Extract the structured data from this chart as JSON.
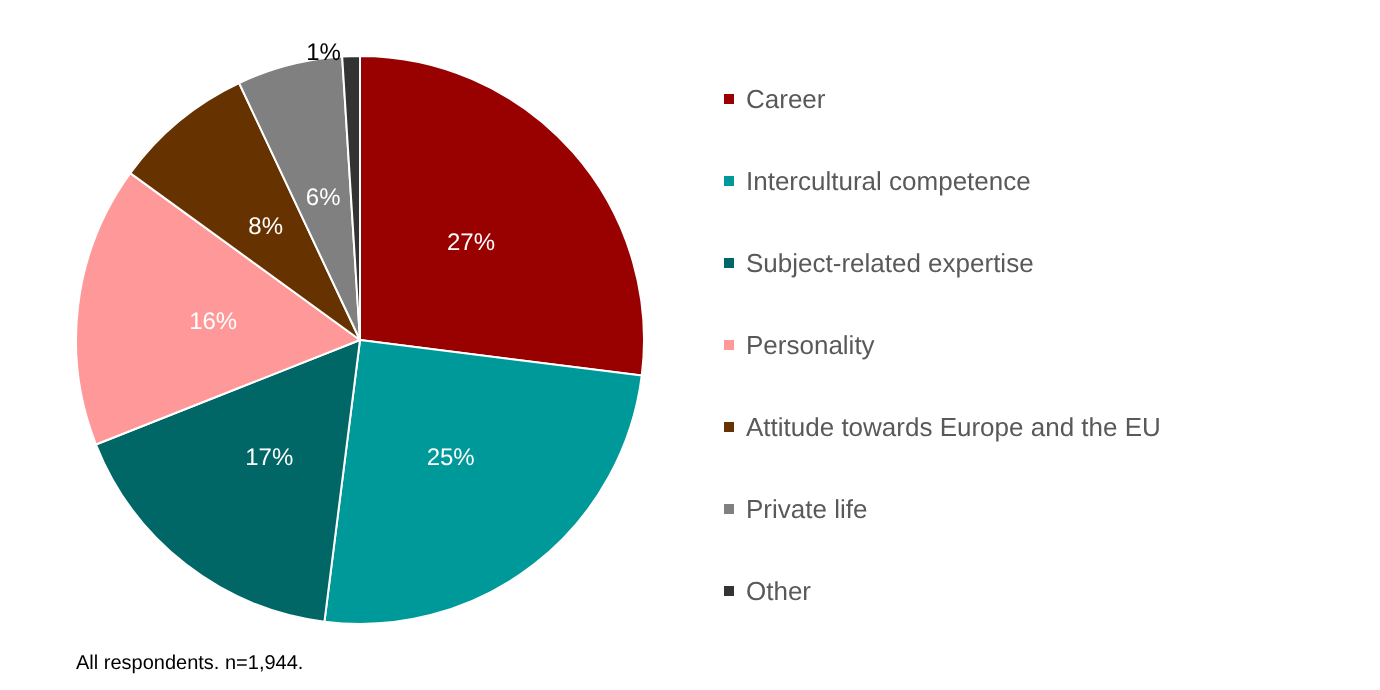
{
  "chart_data": {
    "type": "pie",
    "categories": [
      "Career",
      "Intercultural competence",
      "Subject-related expertise",
      "Personality",
      "Attitude towards Europe and the EU",
      "Private life",
      "Other"
    ],
    "values": [
      27,
      25,
      17,
      16,
      8,
      6,
      1
    ],
    "value_labels": [
      "27%",
      "25%",
      "17%",
      "16%",
      "8%",
      "6%",
      "1%"
    ],
    "colors": [
      "#990000",
      "#009999",
      "#006666",
      "#ff9999",
      "#663300",
      "#808080",
      "#333333"
    ],
    "legend": "right",
    "annotations": [
      "All respondents. n=1,944."
    ]
  }
}
